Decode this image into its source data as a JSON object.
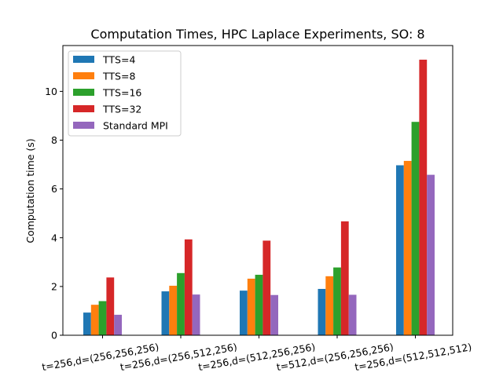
{
  "chart_data": {
    "type": "bar",
    "title": "Computation Times, HPC Laplace Experiments, SO: 8",
    "xlabel": "",
    "ylabel": "Computation time (s)",
    "ylim": [
      0,
      11.88
    ],
    "yticks": [
      0,
      2,
      4,
      6,
      8,
      10
    ],
    "ytick_labels": [
      "0",
      "2",
      "4",
      "6",
      "8",
      "10"
    ],
    "grid": false,
    "legend_position": "top-left",
    "categories": [
      "t=256,d=(256,256,256)",
      "t=256,d=(256,512,256)",
      "t=256,d=(512,256,256)",
      "t=512,d=(256,256,256)",
      "t=256,d=(512,512,512)"
    ],
    "series": [
      {
        "name": "TTS=4",
        "color": "#1f77b4",
        "values": [
          0.93,
          1.8,
          1.83,
          1.9,
          6.97
        ]
      },
      {
        "name": "TTS=8",
        "color": "#ff7f0e",
        "values": [
          1.25,
          2.03,
          2.32,
          2.42,
          7.15
        ]
      },
      {
        "name": "TTS=16",
        "color": "#2ca02c",
        "values": [
          1.4,
          2.55,
          2.48,
          2.78,
          8.75
        ]
      },
      {
        "name": "TTS=32",
        "color": "#d62728",
        "values": [
          2.37,
          3.93,
          3.88,
          4.67,
          11.3
        ]
      },
      {
        "name": "Standard MPI",
        "color": "#9467bd",
        "values": [
          0.84,
          1.67,
          1.65,
          1.66,
          6.58
        ]
      }
    ]
  }
}
